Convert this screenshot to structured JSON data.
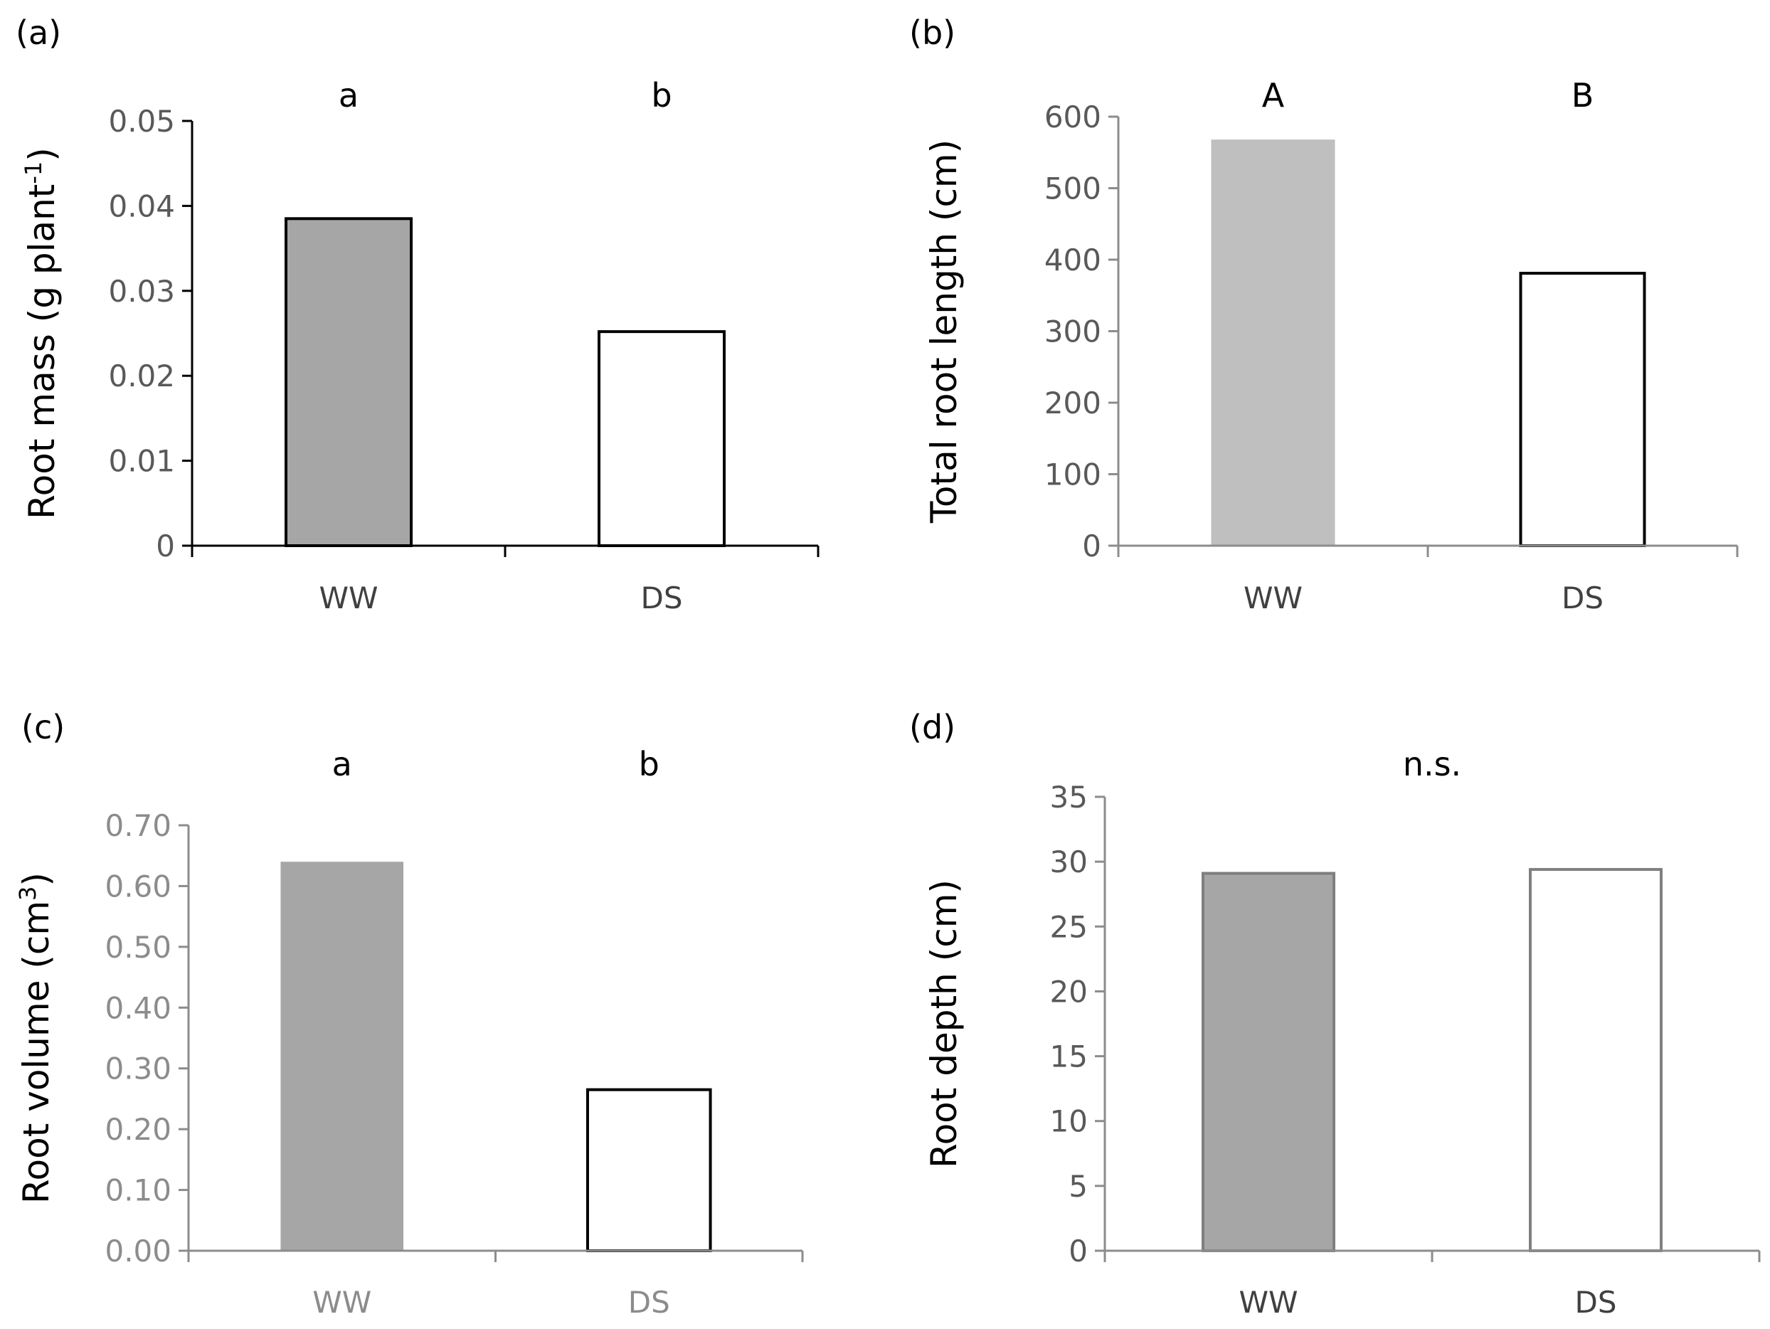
{
  "figure": {
    "panels": [
      {
        "id": "a",
        "panel_label": "(a)",
        "ylabel": "Root mass (g plant",
        "ylabel_sup": "-1",
        "ylabel_tail": ")",
        "categories": [
          "WW",
          "DS"
        ],
        "values": [
          0.0385,
          0.0252
        ],
        "ylim": [
          0,
          0.05
        ],
        "yticks": [
          0,
          0.01,
          0.02,
          0.03,
          0.04,
          0.05
        ],
        "ytick_labels": [
          "0",
          "0.01",
          "0.02",
          "0.03",
          "0.04",
          "0.05"
        ],
        "sig_letters": [
          "a",
          "b"
        ],
        "bar_fills": [
          "#a6a6a6",
          "#ffffff"
        ],
        "bar_strokes": [
          "#000000",
          "#000000"
        ],
        "axis_color": "#000000",
        "tick_color": "#595959",
        "cat_color": "#404040"
      },
      {
        "id": "b",
        "panel_label": "(b)",
        "ylabel": "Total root length (cm)",
        "categories": [
          "WW",
          "DS"
        ],
        "values": [
          568,
          381
        ],
        "ylim": [
          0,
          600
        ],
        "yticks": [
          0,
          100,
          200,
          300,
          400,
          500,
          600
        ],
        "ytick_labels": [
          "0",
          "100",
          "200",
          "300",
          "400",
          "500",
          "600"
        ],
        "sig_letters": [
          "A",
          "B"
        ],
        "bar_fills": [
          "#bfbfbf",
          "#ffffff"
        ],
        "bar_strokes": [
          "none",
          "#000000"
        ],
        "axis_color": "#8c8c8c",
        "tick_color": "#595959",
        "cat_color": "#404040"
      },
      {
        "id": "c",
        "panel_label": "(c)",
        "ylabel": "Root volume (cm",
        "ylabel_sup": "3",
        "ylabel_tail": ")",
        "categories": [
          "WW",
          "DS"
        ],
        "values": [
          0.64,
          0.265
        ],
        "ylim": [
          0,
          0.7
        ],
        "yticks": [
          0,
          0.1,
          0.2,
          0.3,
          0.4,
          0.5,
          0.6,
          0.7
        ],
        "ytick_labels": [
          "0.00",
          "0.10",
          "0.20",
          "0.30",
          "0.40",
          "0.50",
          "0.60",
          "0.70"
        ],
        "sig_letters": [
          "a",
          "b"
        ],
        "bar_fills": [
          "#a6a6a6",
          "#ffffff"
        ],
        "bar_strokes": [
          "none",
          "#000000"
        ],
        "axis_color": "#8c8c8c",
        "tick_color": "#8c8c8c",
        "cat_color": "#8c8c8c"
      },
      {
        "id": "d",
        "panel_label": "(d)",
        "ylabel": "Root depth (cm)",
        "categories": [
          "WW",
          "DS"
        ],
        "values": [
          29.1,
          29.4
        ],
        "ylim": [
          0,
          35
        ],
        "yticks": [
          0,
          5,
          10,
          15,
          20,
          25,
          30,
          35
        ],
        "ytick_labels": [
          "0",
          "5",
          "10",
          "15",
          "20",
          "25",
          "30",
          "35"
        ],
        "sig_text": "n.s.",
        "bar_fills": [
          "#a6a6a6",
          "#ffffff"
        ],
        "bar_strokes": [
          "#7f7f7f",
          "#7f7f7f"
        ],
        "axis_color": "#8c8c8c",
        "tick_color": "#595959",
        "cat_color": "#404040"
      }
    ]
  },
  "chart_data": [
    {
      "type": "bar",
      "title": "(a)",
      "categories": [
        "WW",
        "DS"
      ],
      "values": [
        0.0385,
        0.0252
      ],
      "xlabel": "",
      "ylabel": "Root mass (g plant-1)",
      "ylim": [
        0,
        0.05
      ],
      "annotations": [
        "a",
        "b"
      ]
    },
    {
      "type": "bar",
      "title": "(b)",
      "categories": [
        "WW",
        "DS"
      ],
      "values": [
        568,
        381
      ],
      "xlabel": "",
      "ylabel": "Total root length (cm)",
      "ylim": [
        0,
        600
      ],
      "annotations": [
        "A",
        "B"
      ]
    },
    {
      "type": "bar",
      "title": "(c)",
      "categories": [
        "WW",
        "DS"
      ],
      "values": [
        0.64,
        0.265
      ],
      "xlabel": "",
      "ylabel": "Root volume (cm3)",
      "ylim": [
        0,
        0.7
      ],
      "annotations": [
        "a",
        "b"
      ]
    },
    {
      "type": "bar",
      "title": "(d)",
      "categories": [
        "WW",
        "DS"
      ],
      "values": [
        29.1,
        29.4
      ],
      "xlabel": "",
      "ylabel": "Root depth (cm)",
      "ylim": [
        0,
        35
      ],
      "annotations": [
        "n.s."
      ]
    }
  ]
}
